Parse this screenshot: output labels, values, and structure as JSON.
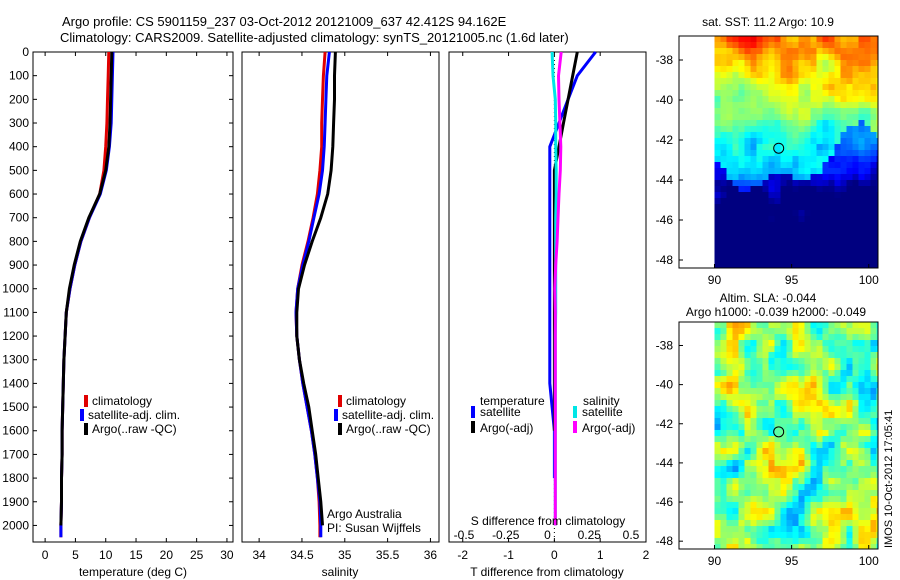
{
  "header": {
    "line1": "Argo profile: CS 5901159_237 03-Oct-2012 20121009_637 42.412S 94.162E",
    "line2": "Climatology: CARS2009. Satellite-adjusted climatology: synTS_20121005.nc (1.6d later)"
  },
  "watermark": "IMOS 10-Oct-2012 17:05:41",
  "colors": {
    "climatology": "#e00000",
    "satellite": "#0000ff",
    "argo": "#000000",
    "sat_s": "#00e6e6",
    "argo_s": "#ff00ff"
  },
  "chart_data": [
    {
      "type": "line",
      "name": "temperature-profile",
      "xlabel": "temperature (deg C)",
      "xlim": [
        -2,
        31
      ],
      "ylim": [
        0,
        2070
      ],
      "xticks": [
        "0",
        "5",
        "10",
        "15",
        "20",
        "25",
        "30"
      ],
      "yticks": [
        "0",
        "100",
        "200",
        "300",
        "400",
        "500",
        "600",
        "700",
        "800",
        "900",
        "1000",
        "1100",
        "1200",
        "1300",
        "1400",
        "1500",
        "1600",
        "1700",
        "1800",
        "1900",
        "2000"
      ],
      "legend": [
        "climatology",
        "satellite-adj. clim.",
        "Argo(..raw -QC)"
      ],
      "series": [
        {
          "name": "climatology",
          "color": "#e00000",
          "x": [
            10.5,
            10.4,
            10.3,
            10.2,
            10.0,
            9.7,
            9.0,
            7.3,
            5.9,
            4.9,
            4.1,
            3.5,
            3.3,
            3.1,
            3.0,
            2.9,
            2.8,
            2.8,
            2.7,
            2.7,
            2.6,
            2.6
          ],
          "y": [
            0,
            100,
            200,
            300,
            400,
            500,
            600,
            700,
            800,
            900,
            1000,
            1100,
            1200,
            1300,
            1400,
            1500,
            1600,
            1700,
            1800,
            1900,
            2000,
            2050
          ]
        },
        {
          "name": "satellite-adj. clim.",
          "color": "#0000ff",
          "x": [
            11.2,
            11.1,
            11.0,
            10.9,
            10.6,
            10.1,
            9.1,
            7.3,
            5.9,
            4.9,
            4.1,
            3.5,
            3.3,
            3.1,
            3.0,
            2.9,
            2.8,
            2.8,
            2.7,
            2.7,
            2.6,
            2.6
          ],
          "y": [
            0,
            100,
            200,
            300,
            400,
            500,
            600,
            700,
            800,
            900,
            1000,
            1100,
            1200,
            1300,
            1400,
            1500,
            1600,
            1700,
            1800,
            1900,
            2000,
            2050
          ]
        },
        {
          "name": "Argo(..raw -QC)",
          "color": "#000000",
          "x": [
            11.0,
            10.9,
            10.8,
            10.7,
            10.5,
            10.0,
            9.0,
            7.2,
            5.8,
            4.8,
            4.0,
            3.5,
            3.3,
            3.1,
            3.0,
            2.9,
            2.8,
            2.8,
            2.7,
            2.7,
            2.6
          ],
          "y": [
            0,
            100,
            200,
            300,
            400,
            500,
            600,
            700,
            800,
            900,
            1000,
            1100,
            1200,
            1300,
            1400,
            1500,
            1600,
            1700,
            1800,
            1900,
            2000
          ]
        }
      ]
    },
    {
      "type": "line",
      "name": "salinity-profile",
      "xlabel": "salinity",
      "xlim": [
        33.8,
        36.1
      ],
      "ylim": [
        0,
        2070
      ],
      "xticks": [
        "34",
        "34.5",
        "35",
        "35.5",
        "36"
      ],
      "legend": [
        "climatology",
        "satellite-adj. clim.",
        "Argo(..raw -QC)"
      ],
      "annotation": [
        "Argo Australia",
        "PI: Susan Wijffels"
      ],
      "series": [
        {
          "name": "climatology",
          "color": "#e00000",
          "x": [
            34.77,
            34.75,
            34.74,
            34.73,
            34.73,
            34.71,
            34.68,
            34.63,
            34.57,
            34.5,
            34.45,
            34.43,
            34.44,
            34.47,
            34.51,
            34.56,
            34.61,
            34.65,
            34.68,
            34.7,
            34.71,
            34.71
          ],
          "y": [
            0,
            100,
            200,
            300,
            400,
            500,
            600,
            700,
            800,
            900,
            1000,
            1100,
            1200,
            1300,
            1400,
            1500,
            1600,
            1700,
            1800,
            1900,
            2000,
            2050
          ]
        },
        {
          "name": "satellite-adj. clim.",
          "color": "#0000ff",
          "x": [
            34.82,
            34.79,
            34.78,
            34.77,
            34.76,
            34.74,
            34.7,
            34.64,
            34.58,
            34.51,
            34.45,
            34.43,
            34.44,
            34.47,
            34.51,
            34.56,
            34.61,
            34.65,
            34.68,
            34.71,
            34.72,
            34.72
          ],
          "y": [
            0,
            100,
            200,
            300,
            400,
            500,
            600,
            700,
            800,
            900,
            1000,
            1100,
            1200,
            1300,
            1400,
            1500,
            1600,
            1700,
            1800,
            1900,
            2000,
            2050
          ]
        },
        {
          "name": "Argo(..raw -QC)",
          "color": "#000000",
          "x": [
            34.89,
            34.88,
            34.88,
            34.87,
            34.86,
            34.84,
            34.8,
            34.72,
            34.62,
            34.53,
            34.46,
            34.44,
            34.44,
            34.47,
            34.52,
            34.58,
            34.62,
            34.66,
            34.69,
            34.72,
            34.74
          ],
          "y": [
            0,
            100,
            200,
            300,
            400,
            500,
            600,
            700,
            800,
            900,
            1000,
            1100,
            1200,
            1300,
            1400,
            1500,
            1600,
            1700,
            1800,
            1900,
            2000
          ]
        }
      ]
    },
    {
      "type": "line",
      "name": "difference-profile",
      "xlabel": "T difference from climatology",
      "xlabel_top": "S difference from climatology",
      "xlim": [
        -2.3,
        2.0
      ],
      "ylim": [
        0,
        2070
      ],
      "xticks": [
        "-2",
        "-1",
        "0",
        "1",
        "2"
      ],
      "xticks_s": [
        "-0.5",
        "-0.25",
        "0",
        "0.25",
        "0.5"
      ],
      "legend_titles": [
        "temperature",
        "salinity"
      ],
      "legend": [
        "satellite",
        "Argo(-adj)",
        "satellite",
        "Argo(-adj)"
      ],
      "series": [
        {
          "name": "satellite",
          "group": "temperature",
          "color": "#0000ff",
          "x": [
            0.9,
            0.5,
            0.3,
            0.1,
            -0.1,
            -0.1,
            -0.1,
            -0.1,
            -0.1,
            -0.1,
            -0.1,
            -0.1,
            -0.1,
            -0.05,
            0,
            0,
            0
          ],
          "y": [
            0,
            100,
            200,
            300,
            400,
            600,
            800,
            900,
            1000,
            1100,
            1200,
            1300,
            1400,
            1500,
            1600,
            1700,
            1800
          ]
        },
        {
          "name": "Argo(-adj)",
          "group": "temperature",
          "color": "#000000",
          "x": [
            0.5,
            0.4,
            0.3,
            0.2,
            0.1,
            0.0,
            0.0,
            0.0,
            0.0,
            0.0,
            0.0,
            0.0,
            0.0,
            0.0,
            0.0,
            0.0,
            0.0
          ],
          "y": [
            0,
            100,
            200,
            300,
            400,
            500,
            600,
            700,
            800,
            900,
            1000,
            1100,
            1200,
            1300,
            1400,
            1500,
            1600
          ]
        },
        {
          "name": "satellite",
          "group": "salinity",
          "color": "#00e6e6",
          "x": [
            -0.05,
            -0.03,
            0.02,
            0.03,
            0.03,
            0.04,
            0.04,
            0.03,
            0.03,
            0.03,
            0.03,
            0.03,
            0.02,
            0.02,
            0.02,
            0.02,
            0.02,
            0.02,
            0.02,
            0.02,
            0.02
          ],
          "y": [
            0,
            100,
            200,
            300,
            400,
            500,
            600,
            700,
            800,
            900,
            1000,
            1100,
            1200,
            1300,
            1400,
            1500,
            1600,
            1700,
            1800,
            1900,
            2000
          ]
        },
        {
          "name": "Argo(-adj)",
          "group": "salinity",
          "color": "#ff00ff",
          "x": [
            0.15,
            0.09,
            0.1,
            0.12,
            0.14,
            0.13,
            0.1,
            0.08,
            0.06,
            0.03,
            0.01,
            0.02,
            0.02,
            0.02,
            0.02,
            0.02,
            0.02,
            0.02,
            0.02,
            0.02,
            0.02
          ],
          "y": [
            0,
            100,
            200,
            300,
            400,
            500,
            600,
            700,
            800,
            900,
            1000,
            1100,
            1200,
            1300,
            1400,
            1500,
            1600,
            1700,
            1800,
            1900,
            2000
          ]
        }
      ]
    },
    {
      "type": "heatmap",
      "name": "sst-map",
      "title": "sat. SST: 11.2 Argo: 10.9",
      "xlim": [
        87.7,
        100.6
      ],
      "ylim": [
        -48.4,
        -36.8
      ],
      "xticks": [
        "90",
        "95",
        "100"
      ],
      "yticks": [
        "-38",
        "-40",
        "-42",
        "-44",
        "-46",
        "-48"
      ],
      "data_start_lon": 90,
      "argo_position": {
        "lon": 94.162,
        "lat": -42.412
      }
    },
    {
      "type": "heatmap",
      "name": "sla-map",
      "title": [
        "Altim. SLA: -0.044",
        "Argo h1000: -0.039 h2000: -0.049"
      ],
      "xlim": [
        87.7,
        100.6
      ],
      "ylim": [
        -48.4,
        -36.8
      ],
      "xticks": [
        "90",
        "95",
        "100"
      ],
      "yticks": [
        "-38",
        "-40",
        "-42",
        "-44",
        "-46",
        "-48"
      ],
      "data_start_lon": 90,
      "argo_position": {
        "lon": 94.162,
        "lat": -42.412
      }
    }
  ]
}
